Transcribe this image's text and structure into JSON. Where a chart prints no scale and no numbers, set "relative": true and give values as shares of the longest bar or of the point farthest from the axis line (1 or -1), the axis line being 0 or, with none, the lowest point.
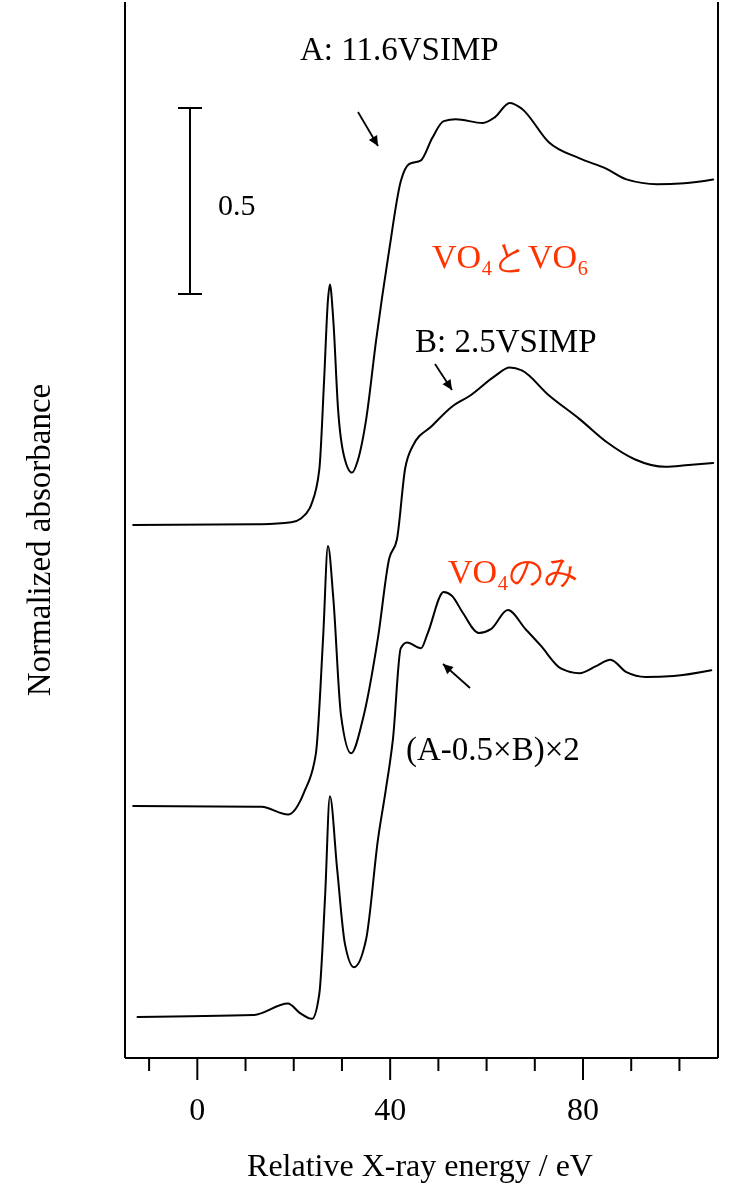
{
  "chart_data": {
    "type": "line",
    "relative": true,
    "xlabel": "Relative X-ray energy / eV",
    "ylabel": "Normalized absorbance",
    "xlim": [
      -15,
      108
    ],
    "xticks": [
      {
        "value": -10,
        "label": null
      },
      0,
      {
        "value": 10,
        "label": null
      },
      {
        "value": 20,
        "label": null
      },
      {
        "value": 30,
        "label": null
      },
      40,
      {
        "value": 50,
        "label": null
      },
      {
        "value": 60,
        "label": null
      },
      {
        "value": 70,
        "label": null
      },
      80,
      {
        "value": 90,
        "label": null
      },
      {
        "value": 100,
        "label": null
      }
    ],
    "grid": false,
    "marker": "none",
    "line_style": "solid",
    "annotations": [
      "0.5",
      "VO₄とVO₆",
      "VO₄のみ"
    ],
    "series": [
      {
        "name": "A: 11.6VSIMP",
        "color": "#000000",
        "x": [
          -13.3,
          13.3,
          19.5,
          21.5,
          23.6,
          25.3,
          26.3,
          27.1,
          27.5,
          28.2,
          29.2,
          30.4,
          32.1,
          33.3,
          35.0,
          37.1,
          39.8,
          42.2,
          43.9,
          46.4,
          48.7,
          51.1,
          53.6,
          59.2,
          61.7,
          64.8,
          67.3,
          72.9,
          79.3,
          84.9,
          89.0,
          95.4,
          101.0,
          107.0
        ],
        "values": [
          0.558,
          0.559,
          0.561,
          0.565,
          0.579,
          0.616,
          0.71,
          0.794,
          0.81,
          0.773,
          0.679,
          0.631,
          0.613,
          0.626,
          0.668,
          0.752,
          0.846,
          0.918,
          0.936,
          0.94,
          0.963,
          0.981,
          0.983,
          0.979,
          0.985,
          1.0,
          0.994,
          0.959,
          0.942,
          0.931,
          0.92,
          0.915,
          0.916,
          0.92
        ]
      },
      {
        "name": "B: 2.5VSIMP",
        "color": "#000000",
        "x": [
          -13.3,
          13.3,
          18.8,
          22.2,
          24.6,
          26.1,
          27.1,
          28.2,
          29.8,
          31.9,
          34.2,
          37.5,
          39.8,
          41.4,
          43.1,
          44.7,
          48.7,
          52.8,
          56.7,
          61.7,
          64.8,
          67.3,
          72.9,
          79.3,
          84.9,
          90.7,
          97.1,
          101.9,
          107.0
        ],
        "values": [
          0.264,
          0.263,
          0.255,
          0.279,
          0.319,
          0.441,
          0.536,
          0.482,
          0.359,
          0.319,
          0.352,
          0.441,
          0.523,
          0.543,
          0.617,
          0.641,
          0.662,
          0.682,
          0.694,
          0.714,
          0.723,
          0.72,
          0.694,
          0.669,
          0.645,
          0.627,
          0.619,
          0.621,
          0.623
        ]
      },
      {
        "name": "(A-0.5×B)×2",
        "color": "#000000",
        "x": [
          -12.4,
          11.6,
          18.8,
          21.3,
          23.8,
          25.3,
          26.5,
          27.5,
          29.0,
          30.6,
          32.5,
          35.0,
          37.5,
          39.1,
          40.6,
          42.2,
          43.5,
          46.4,
          47.8,
          51.1,
          52.8,
          55.1,
          58.4,
          60.9,
          64.4,
          68.1,
          71.2,
          75.4,
          79.3,
          82.6,
          85.7,
          89.0,
          93.0,
          98.8,
          106.6
        ],
        "values": [
          0.043,
          0.045,
          0.057,
          0.047,
          0.041,
          0.067,
          0.169,
          0.274,
          0.198,
          0.12,
          0.095,
          0.124,
          0.23,
          0.281,
          0.335,
          0.429,
          0.435,
          0.429,
          0.445,
          0.488,
          0.484,
          0.466,
          0.445,
          0.449,
          0.469,
          0.449,
          0.432,
          0.408,
          0.403,
          0.41,
          0.417,
          0.404,
          0.399,
          0.4,
          0.406
        ]
      }
    ]
  }
}
